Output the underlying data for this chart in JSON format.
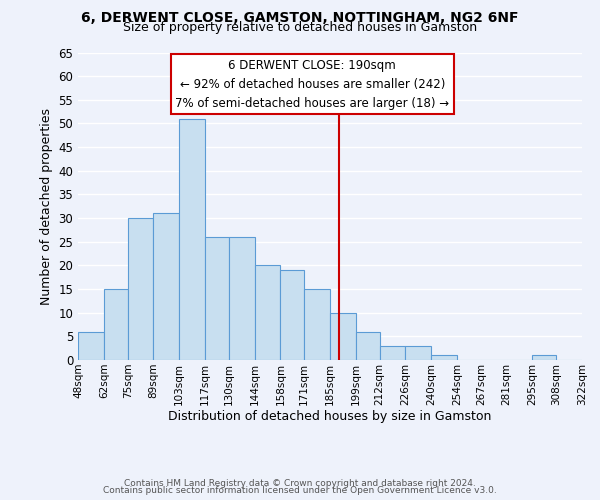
{
  "title": "6, DERWENT CLOSE, GAMSTON, NOTTINGHAM, NG2 6NF",
  "subtitle": "Size of property relative to detached houses in Gamston",
  "xlabel": "Distribution of detached houses by size in Gamston",
  "ylabel": "Number of detached properties",
  "bar_edges": [
    48,
    62,
    75,
    89,
    103,
    117,
    130,
    144,
    158,
    171,
    185,
    199,
    212,
    226,
    240,
    254,
    267,
    281,
    295,
    308,
    322
  ],
  "bar_heights": [
    6,
    15,
    30,
    31,
    51,
    26,
    26,
    20,
    19,
    15,
    10,
    6,
    3,
    3,
    1,
    0,
    0,
    0,
    1,
    0
  ],
  "bar_color": "#c8dff0",
  "bar_edge_color": "#5b9bd5",
  "tick_labels": [
    "48sqm",
    "62sqm",
    "75sqm",
    "89sqm",
    "103sqm",
    "117sqm",
    "130sqm",
    "144sqm",
    "158sqm",
    "171sqm",
    "185sqm",
    "199sqm",
    "212sqm",
    "226sqm",
    "240sqm",
    "254sqm",
    "267sqm",
    "281sqm",
    "295sqm",
    "308sqm",
    "322sqm"
  ],
  "vline_x": 190,
  "vline_color": "#cc0000",
  "ylim": [
    0,
    65
  ],
  "yticks": [
    0,
    5,
    10,
    15,
    20,
    25,
    30,
    35,
    40,
    45,
    50,
    55,
    60,
    65
  ],
  "annotation_title": "6 DERWENT CLOSE: 190sqm",
  "annotation_line1": "← 92% of detached houses are smaller (242)",
  "annotation_line2": "7% of semi-detached houses are larger (18) →",
  "annotation_box_color": "#ffffff",
  "annotation_box_edge": "#cc0000",
  "footer_line1": "Contains HM Land Registry data © Crown copyright and database right 2024.",
  "footer_line2": "Contains public sector information licensed under the Open Government Licence v3.0.",
  "background_color": "#eef2fb",
  "grid_color": "#ffffff"
}
